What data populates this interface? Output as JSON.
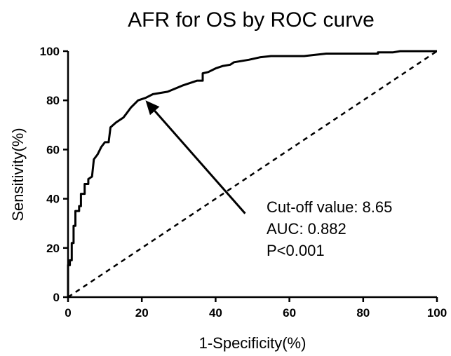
{
  "chart_data": {
    "type": "line",
    "title": "AFR for OS by ROC curve",
    "xlabel": "1-Specificity(%)",
    "ylabel": "Sensitivity(%)",
    "xlim": [
      0,
      100
    ],
    "ylim": [
      0,
      100
    ],
    "x_ticks": [
      "0",
      "20",
      "40",
      "60",
      "80",
      "100"
    ],
    "y_ticks": [
      "0",
      "20",
      "40",
      "60",
      "80",
      "100"
    ],
    "grid": false,
    "legend": "none",
    "series": [
      {
        "style": "solid",
        "color": "#000000",
        "points": [
          [
            0,
            0
          ],
          [
            0,
            13
          ],
          [
            0.5,
            13
          ],
          [
            0.5,
            15
          ],
          [
            1,
            15
          ],
          [
            1,
            22
          ],
          [
            1.5,
            22
          ],
          [
            1.5,
            29
          ],
          [
            2,
            29
          ],
          [
            2,
            35
          ],
          [
            3,
            35
          ],
          [
            3,
            37
          ],
          [
            3.5,
            37
          ],
          [
            3.5,
            42
          ],
          [
            4.5,
            42
          ],
          [
            4.5,
            46
          ],
          [
            5.5,
            46
          ],
          [
            5.5,
            48
          ],
          [
            6.5,
            49
          ],
          [
            7,
            56
          ],
          [
            8,
            58
          ],
          [
            9,
            61
          ],
          [
            10,
            63
          ],
          [
            11,
            63
          ],
          [
            11.5,
            69
          ],
          [
            13,
            71
          ],
          [
            15,
            73
          ],
          [
            16,
            75
          ],
          [
            17,
            77
          ],
          [
            19,
            80
          ],
          [
            21,
            81
          ],
          [
            23,
            82.5
          ],
          [
            27,
            83.5
          ],
          [
            31,
            86
          ],
          [
            35,
            88
          ],
          [
            36.5,
            88
          ],
          [
            36.5,
            91
          ],
          [
            38,
            91.5
          ],
          [
            40,
            93
          ],
          [
            42,
            94
          ],
          [
            44,
            94.5
          ],
          [
            45,
            95.5
          ],
          [
            49,
            96.5
          ],
          [
            52,
            97.5
          ],
          [
            55,
            98
          ],
          [
            64,
            98
          ],
          [
            67,
            98.5
          ],
          [
            70,
            99
          ],
          [
            84,
            99
          ],
          [
            84,
            99.5
          ],
          [
            88,
            99.5
          ],
          [
            90,
            100
          ],
          [
            100,
            100
          ]
        ]
      },
      {
        "style": "dashed",
        "color": "#000000",
        "points": [
          [
            0,
            0
          ],
          [
            100,
            100
          ]
        ]
      }
    ],
    "arrow": {
      "from": [
        48,
        34
      ],
      "to": [
        21,
        80
      ]
    },
    "annotations": [
      "Cut-off value: 8.65",
      "AUC: 0.882",
      "P<0.001"
    ]
  }
}
